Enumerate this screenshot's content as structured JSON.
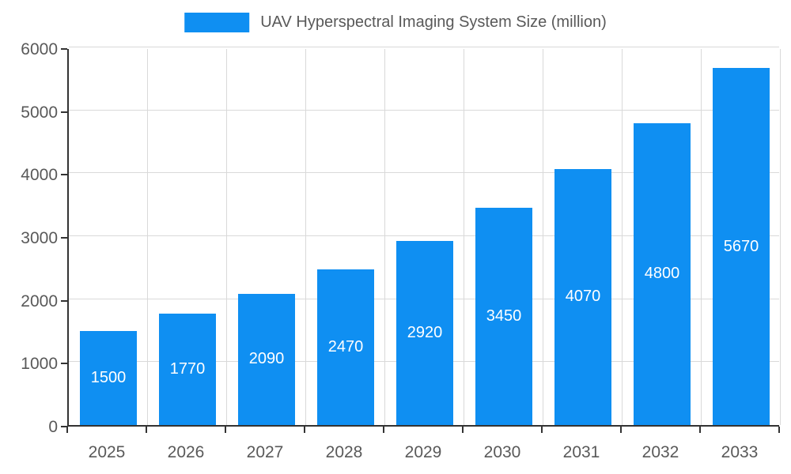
{
  "chart_data": {
    "type": "bar",
    "title": "UAV Hyperspectral Imaging System Size (million)",
    "categories": [
      "2025",
      "2026",
      "2027",
      "2028",
      "2029",
      "2030",
      "2031",
      "2032",
      "2033"
    ],
    "values": [
      1500,
      1770,
      2090,
      2470,
      2920,
      3450,
      4070,
      4800,
      5670
    ],
    "xlabel": "",
    "ylabel": "",
    "ylim": [
      0,
      6000
    ],
    "ytick_step": 1000,
    "yticks": [
      "0",
      "1000",
      "2000",
      "3000",
      "4000",
      "5000",
      "6000"
    ],
    "grid": true,
    "legend_position": "top-center",
    "bar_color": "#0f8ff2",
    "bar_label_color": "#ffffff",
    "axis_text_color": "#595959",
    "grid_color": "#d9d9d9",
    "axis_line_color": "#333333"
  }
}
